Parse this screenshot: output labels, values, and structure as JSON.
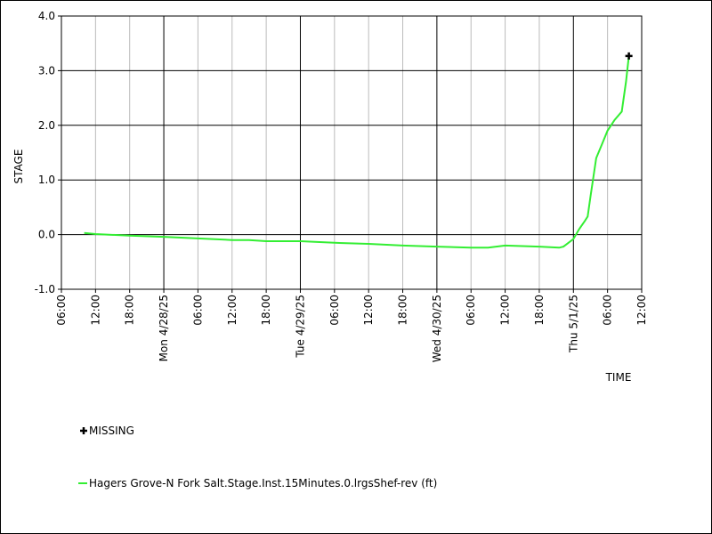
{
  "chart_data": {
    "type": "line",
    "xlabel": "TIME",
    "ylabel": "STAGE",
    "xlim": [
      "2025-04-27T06:00",
      "2025-05-01T12:00"
    ],
    "xticks": [
      {
        "value": "2025-04-27T06:00",
        "label": "06:00"
      },
      {
        "value": "2025-04-27T12:00",
        "label": "12:00"
      },
      {
        "value": "2025-04-27T18:00",
        "label": "18:00"
      },
      {
        "value": "2025-04-28T00:00",
        "label": "Mon 4/28/25"
      },
      {
        "value": "2025-04-28T06:00",
        "label": "06:00"
      },
      {
        "value": "2025-04-28T12:00",
        "label": "12:00"
      },
      {
        "value": "2025-04-28T18:00",
        "label": "18:00"
      },
      {
        "value": "2025-04-29T00:00",
        "label": "Tue 4/29/25"
      },
      {
        "value": "2025-04-29T06:00",
        "label": "06:00"
      },
      {
        "value": "2025-04-29T12:00",
        "label": "12:00"
      },
      {
        "value": "2025-04-29T18:00",
        "label": "18:00"
      },
      {
        "value": "2025-04-30T00:00",
        "label": "Wed 4/30/25"
      },
      {
        "value": "2025-04-30T06:00",
        "label": "06:00"
      },
      {
        "value": "2025-04-30T12:00",
        "label": "12:00"
      },
      {
        "value": "2025-04-30T18:00",
        "label": "18:00"
      },
      {
        "value": "2025-05-01T00:00",
        "label": "Thu 5/1/25"
      },
      {
        "value": "2025-05-01T06:00",
        "label": "06:00"
      },
      {
        "value": "2025-05-01T12:00",
        "label": "12:00"
      }
    ],
    "ylim": [
      -1,
      4
    ],
    "yticks": [
      {
        "value": -1,
        "label": "-1.0"
      },
      {
        "value": 0,
        "label": "0.0"
      },
      {
        "value": 1,
        "label": "1.0"
      },
      {
        "value": 2,
        "label": "2.0"
      },
      {
        "value": 3,
        "label": "3.0"
      },
      {
        "value": 4,
        "label": "4.0"
      }
    ],
    "grid": true,
    "series": [
      {
        "name": "Hagers Grove-N Fork Salt.Stage.Inst.15Minutes.0.lrgsShef-rev (ft)",
        "color": "#33ee33",
        "x": [
          "2025-04-27T10:00",
          "2025-04-27T12:00",
          "2025-04-27T18:00",
          "2025-04-28T00:00",
          "2025-04-28T06:00",
          "2025-04-28T12:00",
          "2025-04-28T15:00",
          "2025-04-28T18:00",
          "2025-04-29T00:00",
          "2025-04-29T06:00",
          "2025-04-29T12:00",
          "2025-04-29T18:00",
          "2025-04-30T00:00",
          "2025-04-30T06:00",
          "2025-04-30T09:00",
          "2025-04-30T12:00",
          "2025-04-30T18:00",
          "2025-04-30T21:30",
          "2025-04-30T22:15",
          "2025-04-30T23:00",
          "2025-05-01T00:00",
          "2025-05-01T01:00",
          "2025-05-01T02:00",
          "2025-05-01T02:30",
          "2025-05-01T03:00",
          "2025-05-01T04:00",
          "2025-05-01T05:00",
          "2025-05-01T06:00",
          "2025-05-01T07:15",
          "2025-05-01T08:30",
          "2025-05-01T09:15",
          "2025-05-01T09:45"
        ],
        "values": [
          0.03,
          0.01,
          -0.02,
          -0.04,
          -0.07,
          -0.1,
          -0.1,
          -0.12,
          -0.12,
          -0.15,
          -0.17,
          -0.2,
          -0.22,
          -0.24,
          -0.24,
          -0.2,
          -0.22,
          -0.24,
          -0.22,
          -0.16,
          -0.08,
          0.1,
          0.25,
          0.33,
          0.7,
          1.4,
          1.65,
          1.9,
          2.1,
          2.25,
          2.8,
          3.27
        ]
      },
      {
        "name": "MISSING",
        "color": "#000000",
        "marker": "plus",
        "x": [
          "2025-05-01T09:45"
        ],
        "values": [
          3.27
        ]
      }
    ]
  }
}
